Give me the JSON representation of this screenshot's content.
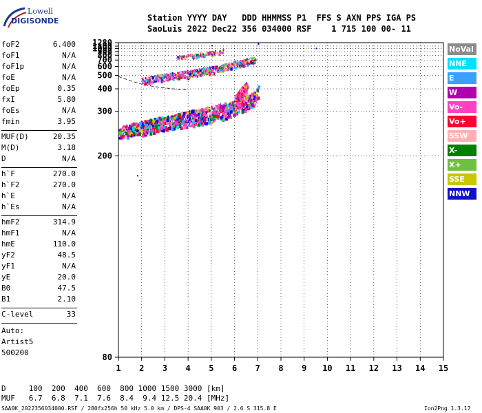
{
  "logo": {
    "line1": "Lowell",
    "line2": "DIGISONDE"
  },
  "header": {
    "row1": "Station YYYY DAY   DDD HHMMSS P1  FFS S AXN PPS IGA PS",
    "row2": "SaoLuis 2022 Dec22 356 034000 RSF    1 715 100 00- 11"
  },
  "params_group1": [
    {
      "name": "foF2",
      "value": "6.400"
    },
    {
      "name": "foF1",
      "value": "N/A"
    },
    {
      "name": "foF1p",
      "value": "N/A"
    },
    {
      "name": "foE",
      "value": "N/A"
    },
    {
      "name": "foEp",
      "value": "0.35"
    },
    {
      "name": "fxI",
      "value": "5.80"
    },
    {
      "name": "foEs",
      "value": "N/A"
    },
    {
      "name": "fmin",
      "value": "3.95"
    }
  ],
  "params_group2": [
    {
      "name": "MUF(D)",
      "value": "20.35"
    },
    {
      "name": "M(D)",
      "value": "3.18"
    },
    {
      "name": "D",
      "value": "N/A"
    }
  ],
  "params_group3": [
    {
      "name": "h`F",
      "value": "270.0"
    },
    {
      "name": "h`F2",
      "value": "270.0"
    },
    {
      "name": "h`E",
      "value": "N/A"
    },
    {
      "name": "h`Es",
      "value": "N/A"
    }
  ],
  "params_group4": [
    {
      "name": "hmF2",
      "value": "314.9"
    },
    {
      "name": "hmF1",
      "value": "N/A"
    },
    {
      "name": "hmE",
      "value": "110.0"
    },
    {
      "name": "yF2",
      "value": "48.5"
    },
    {
      "name": "yF1",
      "value": "N/A"
    },
    {
      "name": "yE",
      "value": "20.0"
    },
    {
      "name": "B0",
      "value": "47.5"
    },
    {
      "name": "B1",
      "value": "2.10"
    }
  ],
  "clevel": {
    "name": "C-level",
    "value": "33"
  },
  "auto": {
    "line1": "Auto:",
    "line2": "Artist5",
    "line3": "500200"
  },
  "legend": [
    {
      "label": "NoVal",
      "color": "#8c8c8c"
    },
    {
      "label": "NNE",
      "color": "#00e0ff"
    },
    {
      "label": "E",
      "color": "#3aa0ff"
    },
    {
      "label": "W",
      "color": "#b000b0"
    },
    {
      "label": "Vo-",
      "color": "#ff40c0"
    },
    {
      "label": "Vo+",
      "color": "#ff0030"
    },
    {
      "label": "SSW",
      "color": "#ffb0b0"
    },
    {
      "label": "X-",
      "color": "#008000"
    },
    {
      "label": "X+",
      "color": "#70c040"
    },
    {
      "label": "SSE",
      "color": "#c8c800"
    },
    {
      "label": "NNW",
      "color": "#1010c8"
    }
  ],
  "footer": {
    "d_row": "D     100  200  400  600  800 1000 1500 3000 [km]",
    "muf_row": "MUF   6.7  6.8  7.1  7.6  8.4  9.4 12.5 20.4 [MHz]",
    "file_info": "SAA0K_2022356034000.RSF / 280fx256h 50 kHz 5.0 km / DPS-4 SAA0K 903 / 2.6 S 315.8 E",
    "version": "Ion2Png 1.3.17"
  },
  "chart_data": {
    "type": "scatter",
    "title": "",
    "xlabel": "",
    "ylabel": "",
    "xlim": [
      1,
      15
    ],
    "ylim": [
      80,
      1280
    ],
    "y_scale": "reciprocal",
    "x_ticks": [
      1,
      2,
      3,
      4,
      5,
      6,
      7,
      8,
      9,
      10,
      11,
      12,
      13,
      14,
      15
    ],
    "y_ticks": [
      80,
      200,
      300,
      400,
      500,
      600,
      700,
      800,
      900,
      1000,
      1100,
      1280
    ],
    "grid": "dotted",
    "traces": [
      {
        "name": "F trace (first hop)",
        "points": [
          [
            1.0,
            245
          ],
          [
            2.0,
            255
          ],
          [
            3.0,
            268
          ],
          [
            4.0,
            280
          ],
          [
            5.0,
            295
          ],
          [
            5.5,
            305
          ],
          [
            6.0,
            318
          ],
          [
            6.5,
            335
          ],
          [
            6.9,
            360
          ],
          [
            7.0,
            395
          ]
        ]
      },
      {
        "name": "F trace (second hop)",
        "points": [
          [
            2.0,
            460
          ],
          [
            3.0,
            490
          ],
          [
            4.0,
            520
          ],
          [
            5.0,
            565
          ],
          [
            5.5,
            600
          ],
          [
            6.0,
            640
          ],
          [
            6.5,
            680
          ],
          [
            6.9,
            730
          ]
        ]
      },
      {
        "name": "F trace (third hop)",
        "points": [
          [
            3.5,
            750
          ],
          [
            4.0,
            780
          ],
          [
            4.5,
            820
          ],
          [
            5.0,
            860
          ],
          [
            5.5,
            900
          ]
        ]
      },
      {
        "name": "Vo+ spread",
        "points": [
          [
            6.0,
            340
          ],
          [
            6.3,
            370
          ],
          [
            6.6,
            400
          ],
          [
            6.8,
            450
          ],
          [
            7.0,
            420
          ],
          [
            6.5,
            430
          ]
        ]
      }
    ],
    "profile_curve": [
      [
        1.0,
        490
      ],
      [
        1.5,
        455
      ],
      [
        2.0,
        430
      ],
      [
        2.5,
        415
      ],
      [
        3.0,
        405
      ],
      [
        3.5,
        398
      ],
      [
        4.0,
        393
      ]
    ],
    "extra_points": [
      [
        9.5,
        1030
      ],
      [
        7.0,
        1230
      ],
      [
        7.0,
        1270
      ],
      [
        5.0,
        1150
      ],
      [
        1.8,
        175
      ],
      [
        1.9,
        170
      ]
    ]
  }
}
